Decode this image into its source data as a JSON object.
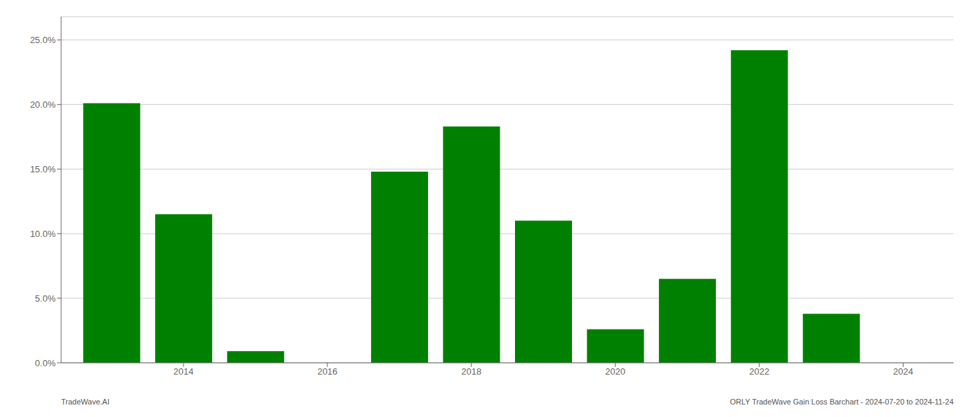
{
  "chart_data": {
    "type": "bar",
    "x": [
      2013,
      2014,
      2015,
      2016,
      2017,
      2018,
      2019,
      2020,
      2021,
      2022,
      2023
    ],
    "values": [
      0.201,
      0.115,
      0.009,
      0.0,
      0.148,
      0.183,
      0.11,
      0.026,
      0.065,
      0.242,
      0.038
    ],
    "color": "#008000",
    "xlim": [
      2012.3,
      2024.7
    ],
    "xticks": [
      2014,
      2016,
      2018,
      2020,
      2022,
      2024
    ],
    "ylim": [
      0.0,
      0.268
    ],
    "yticks": [
      {
        "value": 0.0,
        "label": "0.0%"
      },
      {
        "value": 0.05,
        "label": "5.0%"
      },
      {
        "value": 0.1,
        "label": "10.0%"
      },
      {
        "value": 0.15,
        "label": "15.0%"
      },
      {
        "value": 0.2,
        "label": "20.0%"
      },
      {
        "value": 0.25,
        "label": "25.0%"
      }
    ],
    "grid": true,
    "annotations": [
      "TradeWave.AI",
      "ORLY TradeWave Gain Loss Barchart - 2024-07-20 to 2024-11-24"
    ]
  }
}
